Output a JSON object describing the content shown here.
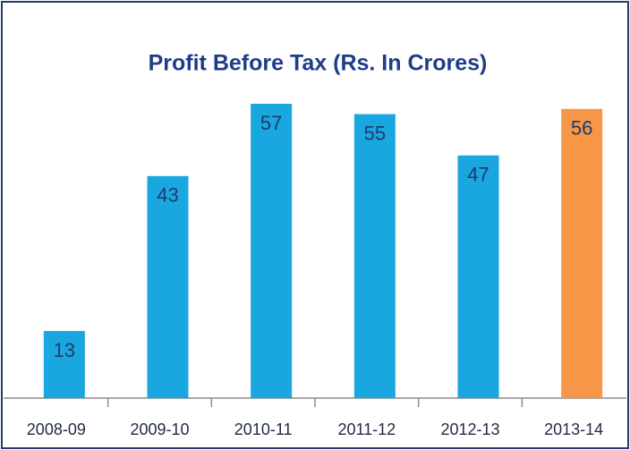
{
  "chart_data": {
    "type": "bar",
    "title": "Profit Before Tax (Rs. In Crores)",
    "categories": [
      "2008-09",
      "2009-10",
      "2010-11",
      "2011-12",
      "2012-13",
      "2013-14"
    ],
    "values": [
      13,
      43,
      57,
      55,
      47,
      56
    ],
    "colors": [
      "#1aa7e0",
      "#1aa7e0",
      "#1aa7e0",
      "#1aa7e0",
      "#1aa7e0",
      "#f79646"
    ]
  }
}
